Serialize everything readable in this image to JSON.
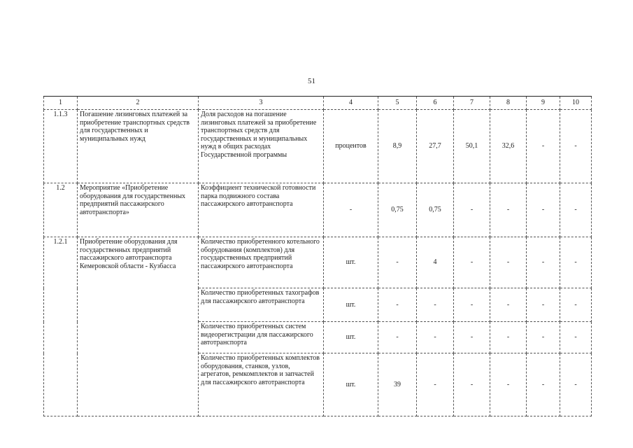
{
  "page_number": "51",
  "header": [
    "1",
    "2",
    "3",
    "4",
    "5",
    "6",
    "7",
    "8",
    "9",
    "10"
  ],
  "rows": [
    {
      "num": "1.1.3",
      "name": "Погашение лизинговых платежей за приобретение транспортных средств для государственных и муниципальных нужд",
      "indicator": "Доля расходов на погашение лизинговых платежей за приобретение транспортных средств для государственных и муниципальных нужд в общих расходах Государственной программы",
      "unit": "процентов",
      "v": [
        "8,9",
        "27,7",
        "50,1",
        "32,6",
        "-",
        "-"
      ]
    },
    {
      "num": "1.2",
      "name": "Мероприятие «Приобретение оборудования для государственных предприятий пассажирского автотранспорта»",
      "indicator": "Коэффициент технической готовности парка подвижного состава пассажирского автотранспорта",
      "unit": "-",
      "v": [
        "0,75",
        "0,75",
        "-",
        "-",
        "-",
        "-"
      ]
    },
    {
      "num": "1.2.1",
      "name": "Приобретение оборудования для государственных предприятий пассажирского автотранспорта Кемеровской области - Кузбасса",
      "indicator": "Количество приобретенного котельного оборудования (комплектов) для государственных предприятий пассажирского автотранспорта",
      "unit": "шт.",
      "v": [
        "-",
        "4",
        "-",
        "-",
        "-",
        "-"
      ]
    },
    {
      "indicator": "Количество приобретенных тахографов для пассажирского автотранспорта",
      "unit": "шт.",
      "v": [
        "-",
        "-",
        "-",
        "-",
        "-",
        "-"
      ]
    },
    {
      "indicator": "Количество приобретенных систем видеорегистрации для пассажирского автотранспорта",
      "unit": "шт.",
      "v": [
        "-",
        "-",
        "-",
        "-",
        "-",
        "-"
      ]
    },
    {
      "indicator": "Количество приобретенных комплектов оборудования, станков, узлов, агрегатов, ремкомплектов и запчастей для пассажирского автотранспорта",
      "unit": "шт.",
      "v": [
        "39",
        "-",
        "-",
        "-",
        "-",
        "-"
      ]
    }
  ]
}
